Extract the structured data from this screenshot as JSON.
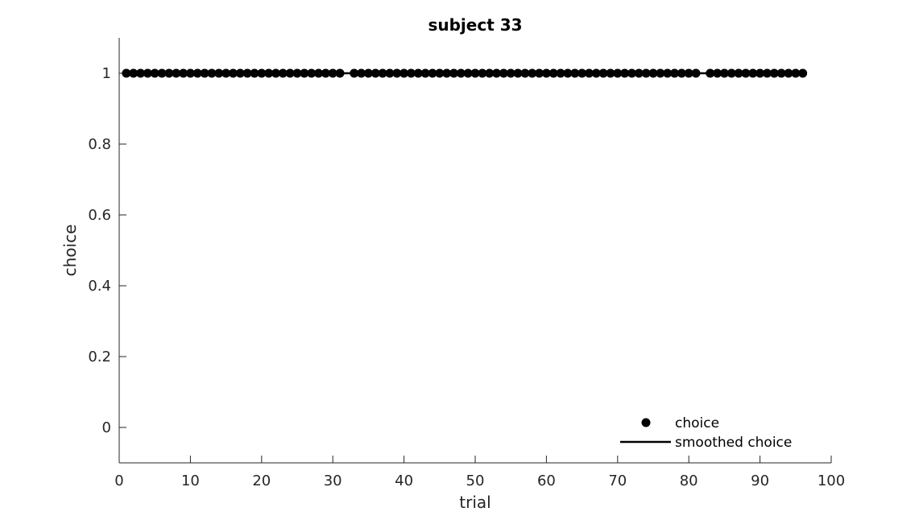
{
  "chart_data": {
    "type": "scatter",
    "title": "subject 33",
    "xlabel": "trial",
    "ylabel": "choice",
    "xlim": [
      0,
      100
    ],
    "ylim": [
      -0.1,
      1.1
    ],
    "xticks": [
      0,
      10,
      20,
      30,
      40,
      50,
      60,
      70,
      80,
      90,
      100
    ],
    "yticks": [
      0,
      0.2,
      0.4,
      0.6,
      0.8,
      1
    ],
    "xtick_labels": [
      "0",
      "10",
      "20",
      "30",
      "40",
      "50",
      "60",
      "70",
      "80",
      "90",
      "100"
    ],
    "ytick_labels": [
      "0",
      "0.2",
      "0.4",
      "0.6",
      "0.8",
      "1"
    ],
    "legend_position": "bottom-right",
    "series": [
      {
        "name": "choice",
        "kind": "markers",
        "color": "#000000",
        "x": [
          1,
          2,
          3,
          4,
          5,
          6,
          7,
          8,
          9,
          10,
          11,
          12,
          13,
          14,
          15,
          16,
          17,
          18,
          19,
          20,
          21,
          22,
          23,
          24,
          25,
          26,
          27,
          28,
          29,
          30,
          31,
          33,
          34,
          35,
          36,
          37,
          38,
          39,
          40,
          41,
          42,
          43,
          44,
          45,
          46,
          47,
          48,
          49,
          50,
          51,
          52,
          53,
          54,
          55,
          56,
          57,
          58,
          59,
          60,
          61,
          62,
          63,
          64,
          65,
          66,
          67,
          68,
          69,
          70,
          71,
          72,
          73,
          74,
          75,
          76,
          77,
          78,
          79,
          80,
          81,
          83,
          84,
          85,
          86,
          87,
          88,
          89,
          90,
          91,
          92,
          93,
          94,
          95,
          96
        ],
        "y_value": 1
      },
      {
        "name": "smoothed choice",
        "kind": "line",
        "color": "#000000",
        "x": [
          1,
          96
        ],
        "y": [
          1,
          1
        ]
      }
    ]
  }
}
